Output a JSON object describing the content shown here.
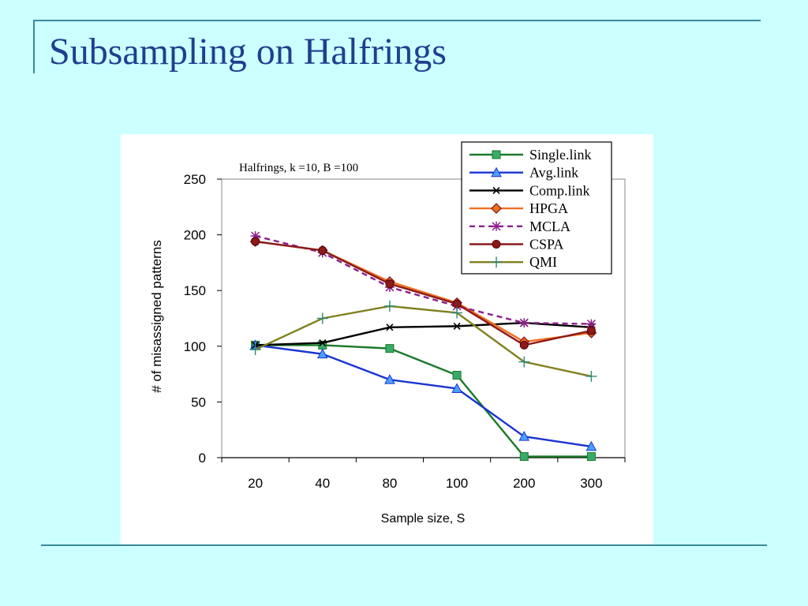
{
  "slide": {
    "title": "Subsampling on Halfrings"
  },
  "chart_data": {
    "type": "line",
    "title": "Halfrings,  k =10, B =100",
    "xlabel": "Sample size, S",
    "ylabel": "# of misassigned patterns",
    "categories": [
      "20",
      "40",
      "80",
      "100",
      "200",
      "300"
    ],
    "ylim": [
      0,
      250
    ],
    "yticks": [
      0,
      50,
      100,
      150,
      200,
      250
    ],
    "grid": false,
    "legend_position": "top-right",
    "series": [
      {
        "name": "Single.link",
        "color": "#1a7a2a",
        "marker": "square",
        "dash": false,
        "values": [
          101,
          101,
          98,
          74,
          1,
          1
        ]
      },
      {
        "name": "Avg.link",
        "color": "#1a35d0",
        "marker": "triangle",
        "dash": false,
        "values": [
          101,
          93,
          70,
          62,
          19,
          10
        ]
      },
      {
        "name": "Comp.link",
        "color": "#000000",
        "marker": "x",
        "dash": false,
        "values": [
          101,
          103,
          117,
          118,
          121,
          117
        ]
      },
      {
        "name": "HPGA",
        "color": "#f07020",
        "marker": "diamond",
        "dash": false,
        "values": [
          194,
          186,
          158,
          139,
          104,
          112
        ]
      },
      {
        "name": "MCLA",
        "color": "#8a1f8a",
        "marker": "asterisk",
        "dash": true,
        "values": [
          199,
          184,
          153,
          136,
          121,
          120
        ]
      },
      {
        "name": "CSPA",
        "color": "#8b1a1a",
        "marker": "circle",
        "dash": false,
        "values": [
          194,
          186,
          156,
          138,
          101,
          114
        ]
      },
      {
        "name": "QMI",
        "color": "#808020",
        "marker": "plus",
        "dash": false,
        "values": [
          97,
          125,
          136,
          130,
          86,
          73
        ]
      }
    ]
  }
}
